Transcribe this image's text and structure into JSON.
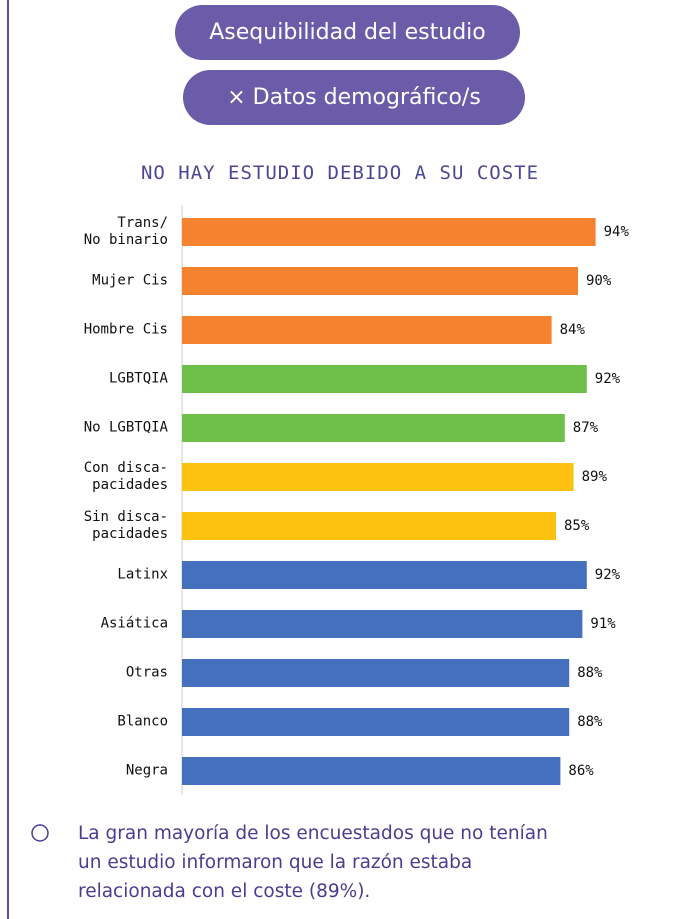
{
  "buttons": [
    "Asequibilidad del estudio",
    "× Datos demográfico/s"
  ],
  "chart_data": {
    "type": "bar",
    "orientation": "horizontal",
    "title": "NO HAY ESTUDIO DEBIDO A SU COSTE",
    "categories": [
      "Trans/\nNo binario",
      "Mujer Cis",
      "Hombre Cis",
      "LGBTQIA",
      "No LGBTQIA",
      "Con disca-\npacidades",
      "Sin disca-\npacidades",
      "Latinx",
      "Asiática",
      "Otras",
      "Blanco",
      "Negra"
    ],
    "values": [
      94,
      90,
      84,
      92,
      87,
      89,
      85,
      92,
      91,
      88,
      88,
      86
    ],
    "value_labels": [
      "94%",
      "90%",
      "84%",
      "92%",
      "87%",
      "89%",
      "85%",
      "92%",
      "91%",
      "88%",
      "88%",
      "86%"
    ],
    "colors": [
      "#f5822f",
      "#f5822f",
      "#f5822f",
      "#6cc04a",
      "#6cc04a",
      "#fcc20f",
      "#fcc20f",
      "#4570bd",
      "#4570bd",
      "#4570bd",
      "#4570bd",
      "#4570bd"
    ],
    "xlim": [
      0,
      100
    ]
  },
  "note": "La gran mayoría de los encuestados que no tenían un estudio informaron que la razón estaba relacionada con el coste (89%)."
}
